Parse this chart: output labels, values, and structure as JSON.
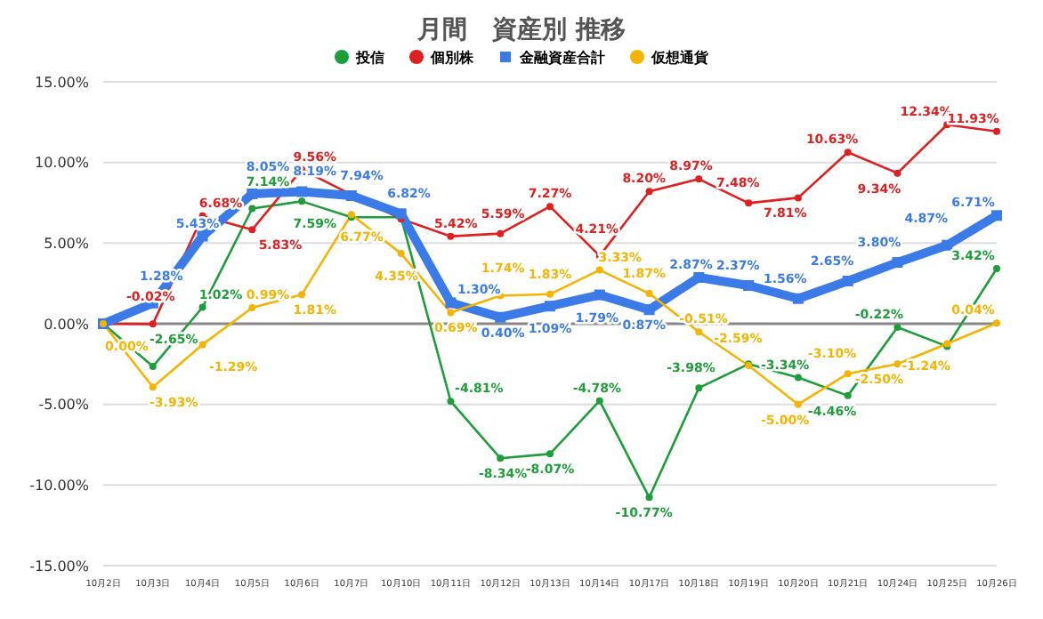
{
  "chart_data": {
    "type": "line",
    "title": "月間　資産別 推移",
    "categories": [
      "10月2日",
      "10月3日",
      "10月4日",
      "10月5日",
      "10月6日",
      "10月7日",
      "10月10日",
      "10月11日",
      "10月12日",
      "10月13日",
      "10月14日",
      "10月17日",
      "10月18日",
      "10月19日",
      "10月20日",
      "10月21日",
      "10月24日",
      "10月25日",
      "10月26日"
    ],
    "series": [
      {
        "name": "投信",
        "color": "#1e9e3a",
        "marker": "circle",
        "values": [
          0,
          -2.65,
          1.02,
          7.14,
          7.59,
          6.6,
          6.6,
          -4.81,
          -8.34,
          -8.07,
          -4.78,
          -10.77,
          -3.98,
          -2.5,
          -3.34,
          -4.46,
          -0.22,
          -1.4,
          3.42
        ],
        "value_labels": [
          null,
          "-2.65%",
          "1.02%",
          "7.14%",
          "7.59%",
          null,
          null,
          "-4.81%",
          "-8.34%",
          "-8.07%",
          "-4.78%",
          "-10.77%",
          "-3.98%",
          null,
          "-3.34%",
          "-4.46%",
          "-0.22%",
          null,
          "3.42%"
        ]
      },
      {
        "name": "個別株",
        "color": "#e02020",
        "marker": "circle",
        "values": [
          0,
          -0.02,
          6.68,
          5.83,
          9.56,
          8.0,
          6.5,
          5.42,
          5.59,
          7.27,
          4.21,
          8.2,
          8.97,
          7.48,
          7.81,
          10.63,
          9.34,
          12.34,
          11.93
        ],
        "value_labels": [
          null,
          "-0.02%",
          "6.68%",
          "5.83%",
          "9.56%",
          null,
          null,
          "5.42%",
          "5.59%",
          "7.27%",
          "4.21%",
          "8.20%",
          "8.97%",
          "7.48%",
          "7.81%",
          "10.63%",
          "9.34%",
          "12.34%",
          "11.93%"
        ]
      },
      {
        "name": "金融資産合計",
        "color": "#3b7be8",
        "marker": "square",
        "values": [
          0,
          1.28,
          5.43,
          8.05,
          8.19,
          7.94,
          6.82,
          1.3,
          0.4,
          1.09,
          1.79,
          0.87,
          2.87,
          2.37,
          1.56,
          2.65,
          3.8,
          4.87,
          6.71
        ],
        "value_labels": [
          null,
          "1.28%",
          "5.43%",
          "8.05%",
          "8.19%",
          "7.94%",
          "6.82%",
          "1.30%",
          "0.40%",
          "1.09%",
          "1.79%",
          "0.87%",
          "2.87%",
          "2.37%",
          "1.56%",
          "2.65%",
          "3.80%",
          "4.87%",
          "6.71%"
        ]
      },
      {
        "name": "仮想通貨",
        "color": "#f5b400",
        "marker": "circle",
        "values": [
          0,
          -3.93,
          -1.29,
          0.99,
          1.81,
          6.77,
          4.35,
          0.69,
          1.74,
          1.83,
          3.33,
          1.87,
          -0.51,
          -2.59,
          -5.0,
          -3.1,
          -2.5,
          -1.24,
          0.04
        ],
        "value_labels": [
          "0.00%",
          "-3.93%",
          "-1.29%",
          "0.99%",
          "1.81%",
          "6.77%",
          "4.35%",
          "0.69%",
          "1.74%",
          "1.83%",
          "3.33%",
          "1.87%",
          "-0.51%",
          "-2.59%",
          "-5.00%",
          "-3.10%",
          "-2.50%",
          "-1.24%",
          "0.04%"
        ]
      }
    ],
    "ylim": [
      -15,
      15
    ],
    "yticks": [
      {
        "value": -15,
        "label": "-15.00%"
      },
      {
        "value": -10,
        "label": "-10.00%"
      },
      {
        "value": -5,
        "label": "-5.00%"
      },
      {
        "value": 0,
        "label": "0.00%"
      },
      {
        "value": 5,
        "label": "5.00%"
      },
      {
        "value": 10,
        "label": "10.00%"
      },
      {
        "value": 15,
        "label": "15.00%"
      }
    ],
    "grid": "y",
    "legend": "top"
  }
}
